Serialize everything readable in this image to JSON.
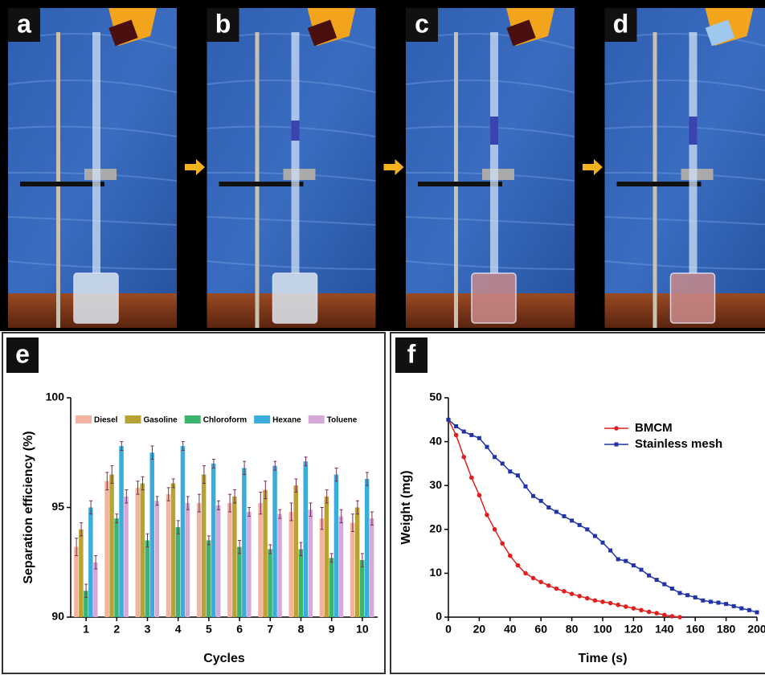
{
  "panels": [
    "a",
    "b",
    "c",
    "d"
  ],
  "chart_data": [
    {
      "panel": "e",
      "type": "bar",
      "y_label": "Separation efficiency (%)",
      "x_label": "Cycles",
      "categories": [
        "1",
        "2",
        "3",
        "4",
        "5",
        "6",
        "7",
        "8",
        "9",
        "10"
      ],
      "ylim": [
        90,
        100
      ],
      "yticks": [
        90,
        95,
        100
      ],
      "error_color": "#7a2e55",
      "series": [
        {
          "name": "Diesel",
          "color": "#f2b3a0",
          "values": [
            93.2,
            96.2,
            95.9,
            95.6,
            95.2,
            95.2,
            95.2,
            94.8,
            94.5,
            94.3
          ],
          "errors": [
            0.4,
            0.4,
            0.3,
            0.3,
            0.4,
            0.4,
            0.5,
            0.4,
            0.5,
            0.4
          ]
        },
        {
          "name": "Gasoline",
          "color": "#b9a234",
          "values": [
            94.0,
            96.5,
            96.1,
            96.1,
            96.5,
            95.5,
            95.8,
            96.0,
            95.5,
            95.0
          ],
          "errors": [
            0.3,
            0.4,
            0.3,
            0.2,
            0.4,
            0.3,
            0.4,
            0.3,
            0.3,
            0.3
          ]
        },
        {
          "name": "Chloroform",
          "color": "#3db46d",
          "values": [
            91.2,
            94.5,
            93.5,
            94.1,
            93.5,
            93.2,
            93.1,
            93.1,
            92.7,
            92.6
          ],
          "errors": [
            0.3,
            0.2,
            0.3,
            0.3,
            0.2,
            0.3,
            0.2,
            0.3,
            0.2,
            0.3
          ]
        },
        {
          "name": "Hexane",
          "color": "#3aaddc",
          "values": [
            95.0,
            97.8,
            97.5,
            97.8,
            97.0,
            96.8,
            96.9,
            97.1,
            96.5,
            96.3
          ],
          "errors": [
            0.3,
            0.2,
            0.3,
            0.2,
            0.2,
            0.3,
            0.2,
            0.2,
            0.3,
            0.3
          ]
        },
        {
          "name": "Toluene",
          "color": "#d7a9da",
          "values": [
            92.5,
            95.5,
            95.3,
            95.2,
            95.1,
            94.8,
            94.7,
            94.9,
            94.6,
            94.5
          ],
          "errors": [
            0.3,
            0.3,
            0.2,
            0.3,
            0.2,
            0.2,
            0.2,
            0.3,
            0.3,
            0.3
          ]
        }
      ]
    },
    {
      "panel": "f",
      "type": "line",
      "y_label": "Weight (mg)",
      "x_label": "Time (s)",
      "xlim": [
        0,
        200
      ],
      "xticks": [
        0,
        20,
        40,
        60,
        80,
        100,
        120,
        140,
        160,
        180,
        200
      ],
      "ylim": [
        0,
        50
      ],
      "yticks": [
        0,
        10,
        20,
        30,
        40,
        50
      ],
      "legend": "upper right",
      "series": [
        {
          "name": "BMCM",
          "color": "#e02020",
          "marker": "circle",
          "x": [
            0,
            5,
            10,
            15,
            20,
            25,
            30,
            35,
            40,
            45,
            50,
            55,
            60,
            65,
            70,
            75,
            80,
            85,
            90,
            95,
            100,
            105,
            110,
            115,
            120,
            125,
            130,
            135,
            140,
            145,
            150
          ],
          "values": [
            45,
            41.5,
            36.5,
            31.8,
            27.8,
            23.3,
            20,
            16.8,
            14,
            11.8,
            10,
            8.9,
            8,
            7.2,
            6.5,
            5.9,
            5.3,
            4.8,
            4.3,
            3.8,
            3.5,
            3.2,
            2.8,
            2.4,
            2,
            1.6,
            1.2,
            0.9,
            0.5,
            0.2,
            0
          ]
        },
        {
          "name": "Stainless mesh",
          "color": "#2233aa",
          "marker": "square",
          "x": [
            0,
            5,
            10,
            15,
            20,
            25,
            30,
            35,
            40,
            45,
            50,
            55,
            60,
            65,
            70,
            75,
            80,
            85,
            90,
            95,
            100,
            105,
            110,
            115,
            120,
            125,
            130,
            135,
            140,
            145,
            150,
            155,
            160,
            165,
            170,
            175,
            180,
            185,
            190,
            195,
            200
          ],
          "values": [
            45,
            43.5,
            42.3,
            41.5,
            40.8,
            38.8,
            36.5,
            35,
            33.2,
            32.3,
            29.8,
            27.6,
            26.5,
            25,
            24,
            23,
            22,
            21,
            20,
            18.5,
            17,
            15.2,
            13.2,
            12.8,
            11.8,
            10.8,
            9.5,
            8.5,
            7.5,
            6.5,
            5.5,
            5,
            4.5,
            3.8,
            3.5,
            3.3,
            3,
            2.5,
            2,
            1.6,
            1.1
          ]
        }
      ]
    }
  ]
}
